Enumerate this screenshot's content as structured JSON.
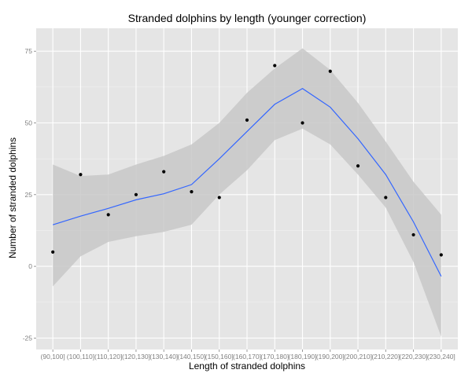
{
  "chart_data": {
    "type": "scatter",
    "title": "Stranded dolphins by length (younger correction)",
    "xlabel": "Length of stranded dolphins",
    "ylabel": "Number of stranded dolphins",
    "categories": [
      "(90,100]",
      "(100,110]",
      "(110,120]",
      "(120,130]",
      "(130,140]",
      "(140,150]",
      "(150,160]",
      "(160,170]",
      "(170,180]",
      "(180,190]",
      "(190,200]",
      "(200,210]",
      "(210,220]",
      "(220,230]",
      "(230,240]"
    ],
    "yticks": [
      -25,
      0,
      25,
      50,
      75
    ],
    "ylim": [
      -29,
      83
    ],
    "grid": true,
    "points": [
      5,
      32,
      18,
      25,
      33,
      26,
      24,
      51,
      70,
      50,
      68,
      35,
      24,
      11,
      4
    ],
    "smooth": {
      "fit": [
        14.5,
        17.5,
        20.2,
        23.2,
        25.3,
        28.5,
        37.5,
        47.0,
        56.5,
        62.0,
        55.5,
        44.5,
        32.0,
        15.5,
        -3.5
      ],
      "upper": [
        35.5,
        31.5,
        32.0,
        35.5,
        38.5,
        42.5,
        50.0,
        60.5,
        69.0,
        76.0,
        68.5,
        57.0,
        43.5,
        29.5,
        18.0
      ],
      "lower": [
        -7.0,
        3.5,
        8.5,
        10.5,
        12.0,
        14.5,
        25.0,
        33.5,
        44.0,
        48.0,
        42.5,
        32.0,
        20.5,
        1.5,
        -24.5
      ]
    },
    "colors": {
      "panel": "#e5e5e5",
      "grid_major": "#ffffff",
      "grid_minor": "#f2f2f2",
      "ribbon": "#c8c8c8",
      "line": "#3366ff",
      "point": "#000000"
    }
  }
}
